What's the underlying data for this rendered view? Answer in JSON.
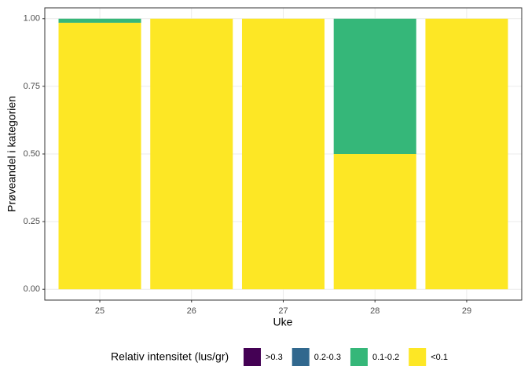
{
  "chart_data": {
    "type": "stacked_bar",
    "categories": [
      "25",
      "26",
      "27",
      "28",
      "29"
    ],
    "series": [
      {
        "name": "<0.1",
        "color": "#fde725",
        "values": [
          0.985,
          1,
          1,
          0.5,
          1
        ]
      },
      {
        "name": "0.1-0.2",
        "color": "#35b779",
        "values": [
          0.015,
          0,
          0,
          0.5,
          0
        ]
      },
      {
        "name": "0.2-0.3",
        "color": "#31688e",
        "values": [
          0,
          0,
          0,
          0,
          0
        ]
      },
      {
        "name": ">0.3",
        "color": "#440154",
        "values": [
          0,
          0,
          0,
          0,
          0
        ]
      }
    ],
    "legend_order": [
      ">0.3",
      "0.2-0.3",
      "0.1-0.2",
      "<0.1"
    ],
    "legend_title": "Relativ intensitet (lus/gr)",
    "legend_position": "bottom",
    "xlabel": "Uke",
    "ylabel": "Prøveandel i kategorien",
    "ylim": [
      -0.04,
      1.04
    ],
    "yticks": [
      {
        "value": 0,
        "label": "0.00"
      },
      {
        "value": 0.25,
        "label": "0.25"
      },
      {
        "value": 0.5,
        "label": "0.50"
      },
      {
        "value": 0.75,
        "label": "0.75"
      },
      {
        "value": 1,
        "label": "1.00"
      }
    ],
    "grid": true
  }
}
